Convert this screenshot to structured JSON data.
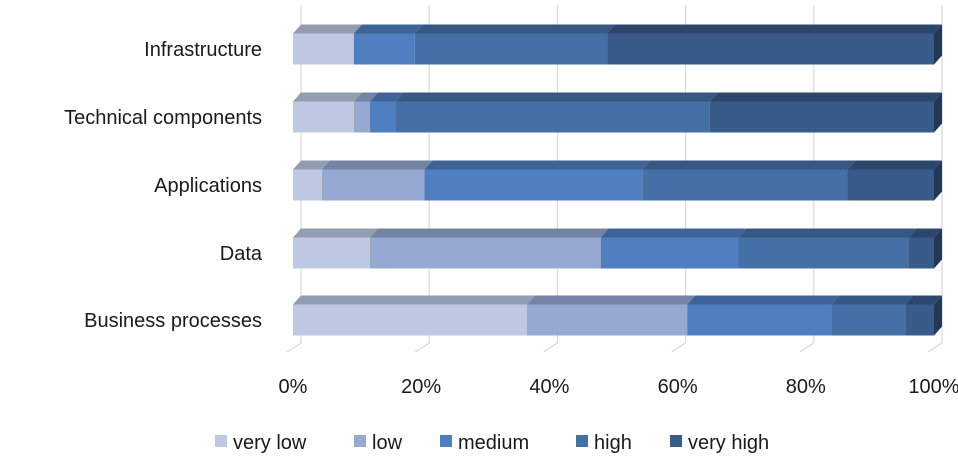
{
  "chart_data": {
    "type": "bar",
    "orientation": "horizontal",
    "stacked": "100%",
    "categories": [
      "Infrastructure",
      "Technical components",
      "Applications",
      "Data",
      "Business processes"
    ],
    "series": [
      {
        "name": "very low",
        "color": "#bdc9e3",
        "values": [
          9.5,
          9.5,
          4.5,
          12,
          36.5
        ]
      },
      {
        "name": "low",
        "color": "#95a9d3",
        "values": [
          0,
          2.5,
          16,
          36,
          25
        ]
      },
      {
        "name": "medium",
        "color": "#4f7fc0",
        "values": [
          9.5,
          4,
          34,
          21.5,
          22.5
        ]
      },
      {
        "name": "high",
        "color": "#4470a6",
        "values": [
          30,
          49,
          32,
          26.5,
          11.5
        ]
      },
      {
        "name": "very high",
        "color": "#395b89",
        "values": [
          51,
          35,
          13.5,
          4,
          4.5
        ]
      }
    ],
    "xticks": [
      "0%",
      "20%",
      "40%",
      "60%",
      "80%",
      "100%"
    ],
    "xlim": [
      0,
      100
    ],
    "grid": true,
    "legend_position": "bottom",
    "effect": "3d"
  }
}
